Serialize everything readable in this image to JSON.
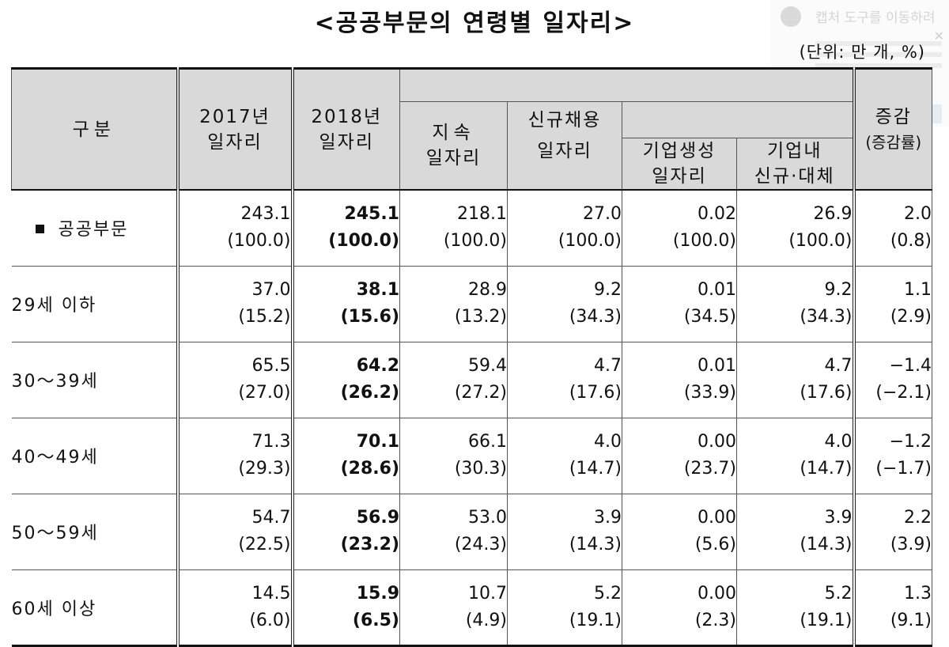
{
  "title": "<공공부문의 연령별 일자리>",
  "unit": "(단위: 만 개, %)",
  "overlay": {
    "text": "캡처 도구를 이동하려"
  },
  "headers": {
    "category": "구분",
    "y2017_a": "2017년",
    "y2017_b": "일자리",
    "y2018_a": "2018년",
    "y2018_b": "일자리",
    "sustained_a": "지속",
    "sustained_b": "일자리",
    "new_a": "신규채용",
    "new_b": "일자리",
    "firm_created_a": "기업생성",
    "firm_created_b": "일자리",
    "in_firm_a": "기업내",
    "in_firm_b": "신규·대체",
    "change_a": "증감",
    "change_b": "(증감률)"
  },
  "rows": [
    {
      "label": "공공부문",
      "v2017": "243.1",
      "p2017": "(100.0)",
      "v2018": "245.1",
      "p2018": "(100.0)",
      "vsus": "218.1",
      "psus": "(100.0)",
      "vnew": "27.0",
      "pnew": "(100.0)",
      "vfirm": "0.02",
      "pfirm": "(100.0)",
      "vin": "26.9",
      "pin": "(100.0)",
      "vchg": "2.0",
      "pchg": "(0.8)"
    },
    {
      "label": "29세 이하",
      "v2017": "37.0",
      "p2017": "(15.2)",
      "v2018": "38.1",
      "p2018": "(15.6)",
      "vsus": "28.9",
      "psus": "(13.2)",
      "vnew": "9.2",
      "pnew": "(34.3)",
      "vfirm": "0.01",
      "pfirm": "(34.5)",
      "vin": "9.2",
      "pin": "(34.3)",
      "vchg": "1.1",
      "pchg": "(2.9)"
    },
    {
      "label": "30～39세",
      "v2017": "65.5",
      "p2017": "(27.0)",
      "v2018": "64.2",
      "p2018": "(26.2)",
      "vsus": "59.4",
      "psus": "(27.2)",
      "vnew": "4.7",
      "pnew": "(17.6)",
      "vfirm": "0.01",
      "pfirm": "(33.9)",
      "vin": "4.7",
      "pin": "(17.6)",
      "vchg": "−1.4",
      "pchg": "(−2.1)"
    },
    {
      "label": "40～49세",
      "v2017": "71.3",
      "p2017": "(29.3)",
      "v2018": "70.1",
      "p2018": "(28.6)",
      "vsus": "66.1",
      "psus": "(30.3)",
      "vnew": "4.0",
      "pnew": "(14.7)",
      "vfirm": "0.00",
      "pfirm": "(23.7)",
      "vin": "4.0",
      "pin": "(14.7)",
      "vchg": "−1.2",
      "pchg": "(−1.7)"
    },
    {
      "label": "50～59세",
      "v2017": "54.7",
      "p2017": "(22.5)",
      "v2018": "56.9",
      "p2018": "(23.2)",
      "vsus": "53.0",
      "psus": "(24.3)",
      "vnew": "3.9",
      "pnew": "(14.3)",
      "vfirm": "0.00",
      "pfirm": "(5.6)",
      "vin": "3.9",
      "pin": "(14.3)",
      "vchg": "2.2",
      "pchg": "(3.9)"
    },
    {
      "label": "60세 이상",
      "v2017": "14.5",
      "p2017": "(6.0)",
      "v2018": "15.9",
      "p2018": "(6.5)",
      "vsus": "10.7",
      "psus": "(4.9)",
      "vnew": "5.2",
      "pnew": "(19.1)",
      "vfirm": "0.00",
      "pfirm": "(2.3)",
      "vin": "5.2",
      "pin": "(19.1)",
      "vchg": "1.3",
      "pchg": "(9.1)"
    }
  ]
}
